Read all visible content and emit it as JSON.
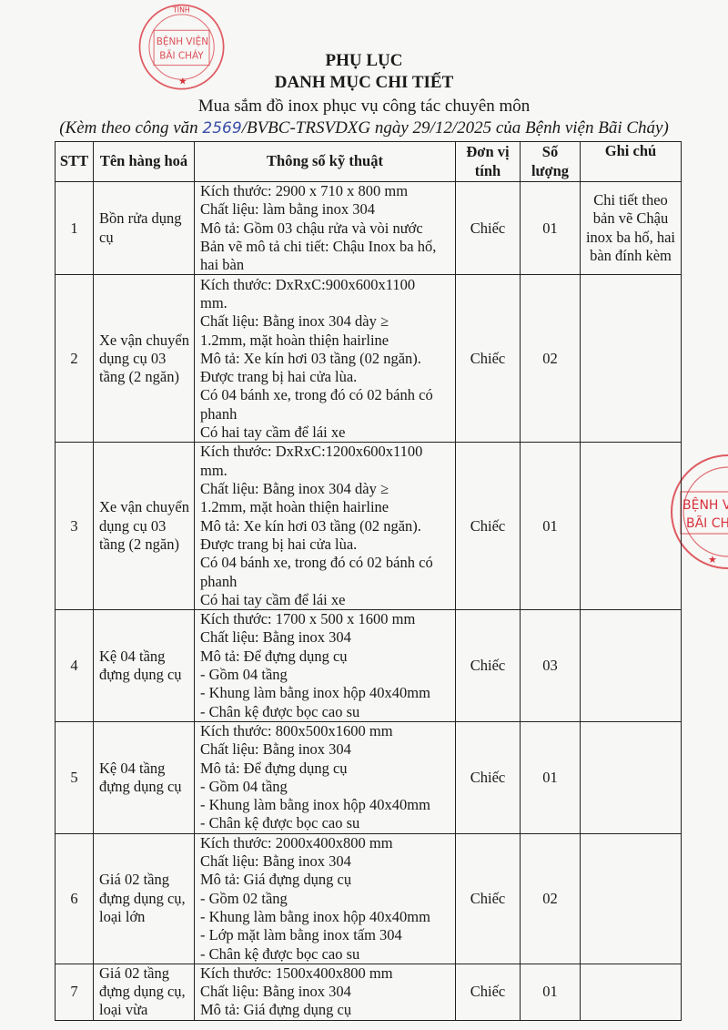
{
  "header": {
    "title": "PHỤ LỤC",
    "subtitle": "DANH MỤC CHI TIẾT",
    "description": "Mua sắm đồ inox phục vụ công tác chuyên môn",
    "ref_prefix": "(Kèm theo công văn ",
    "ref_number": "2569",
    "ref_suffix": "/BVBC-TRSVDXG ngày 29/12/2025 của Bệnh viện Bãi Cháy)"
  },
  "stamp": {
    "text_top": "TỈNH",
    "line1": "BỆNH VIỆN",
    "line2": "BÃI CHÁY",
    "color": "#d8323c"
  },
  "table": {
    "columns": [
      "STT",
      "Tên hàng hoá",
      "Thông số kỹ thuật",
      "Đơn vị tính",
      "Số lượng",
      "Ghi chú"
    ],
    "rows": [
      {
        "stt": "1",
        "name": "Bồn rửa dụng cụ",
        "specs": [
          "Kích thước: 2900 x 710 x 800 mm",
          "Chất liệu: làm bằng inox 304",
          "Mô tả: Gồm 03 chậu rửa và vòi nước",
          "Bản vẽ mô tả chi tiết: Chậu Inox ba hố,",
          "hai bàn"
        ],
        "unit": "Chiếc",
        "qty": "01",
        "note": "Chi tiết theo bản vẽ Chậu inox ba hố, hai bàn đính kèm"
      },
      {
        "stt": "2",
        "name": "Xe vận chuyển dụng cụ 03 tầng (2 ngăn)",
        "specs": [
          "Kích thước: DxRxC:900x600x1100",
          "mm.",
          "Chất liệu: Bằng inox 304 dày ≥",
          "1.2mm, mặt hoàn thiện hairline",
          "Mô tả: Xe kín hơi  03 tầng (02 ngăn).",
          "Được trang bị hai cửa lùa.",
          "Có 04 bánh xe, trong đó có 02 bánh có",
          "phanh",
          "Có hai tay cầm để lái xe"
        ],
        "unit": "Chiếc",
        "qty": "02",
        "note": ""
      },
      {
        "stt": "3",
        "name": "Xe vận chuyển dụng cụ 03 tầng (2 ngăn)",
        "specs": [
          "Kích thước: DxRxC:1200x600x1100",
          "mm.",
          "Chất liệu: Bằng inox 304 dày ≥",
          "1.2mm, mặt hoàn thiện hairline",
          "Mô tả: Xe kín hơi  03 tầng (02 ngăn).",
          "Được trang bị hai cửa lùa.",
          "Có 04 bánh xe, trong đó có 02 bánh có",
          "phanh",
          "Có hai tay cầm để lái xe"
        ],
        "unit": "Chiếc",
        "qty": "01",
        "note": ""
      },
      {
        "stt": "4",
        "name": "Kệ 04 tầng đựng dụng cụ",
        "specs": [
          "Kích thước: 1700 x 500 x 1600 mm",
          "Chất liệu: Bằng inox 304",
          "Mô tả: Để đựng dụng cụ",
          "- Gồm 04 tầng",
          "- Khung làm bằng inox hộp 40x40mm",
          "- Chân kệ được bọc cao su"
        ],
        "unit": "Chiếc",
        "qty": "03",
        "note": ""
      },
      {
        "stt": "5",
        "name": "Kệ 04 tầng đựng dụng cụ",
        "specs": [
          "Kích thước: 800x500x1600 mm",
          "Chất liệu: Bằng inox 304",
          "Mô tả: Để đựng dụng cụ",
          "- Gồm 04 tầng",
          "- Khung làm bằng inox hộp 40x40mm",
          "- Chân kệ được bọc cao su"
        ],
        "unit": "Chiếc",
        "qty": "01",
        "note": ""
      },
      {
        "stt": "6",
        "name": "Giá 02 tầng đựng dụng cụ, loại lớn",
        "specs": [
          "Kích thước: 2000x400x800 mm",
          "Chất liệu: Bằng inox 304",
          "Mô tả: Giá đựng dụng cụ",
          "- Gồm 02 tầng",
          "- Khung làm bằng inox hộp 40x40mm",
          "- Lớp mặt làm bằng inox tấm 304",
          "- Chân kệ được bọc cao su"
        ],
        "unit": "Chiếc",
        "qty": "02",
        "note": ""
      },
      {
        "stt": "7",
        "name": "Giá 02 tầng đựng dụng cụ, loại vừa",
        "specs": [
          "Kích thước: 1500x400x800 mm",
          "Chất liệu: Bằng inox 304",
          "Mô tả: Giá đựng dụng cụ"
        ],
        "unit": "Chiếc",
        "qty": "01",
        "note": ""
      }
    ]
  }
}
